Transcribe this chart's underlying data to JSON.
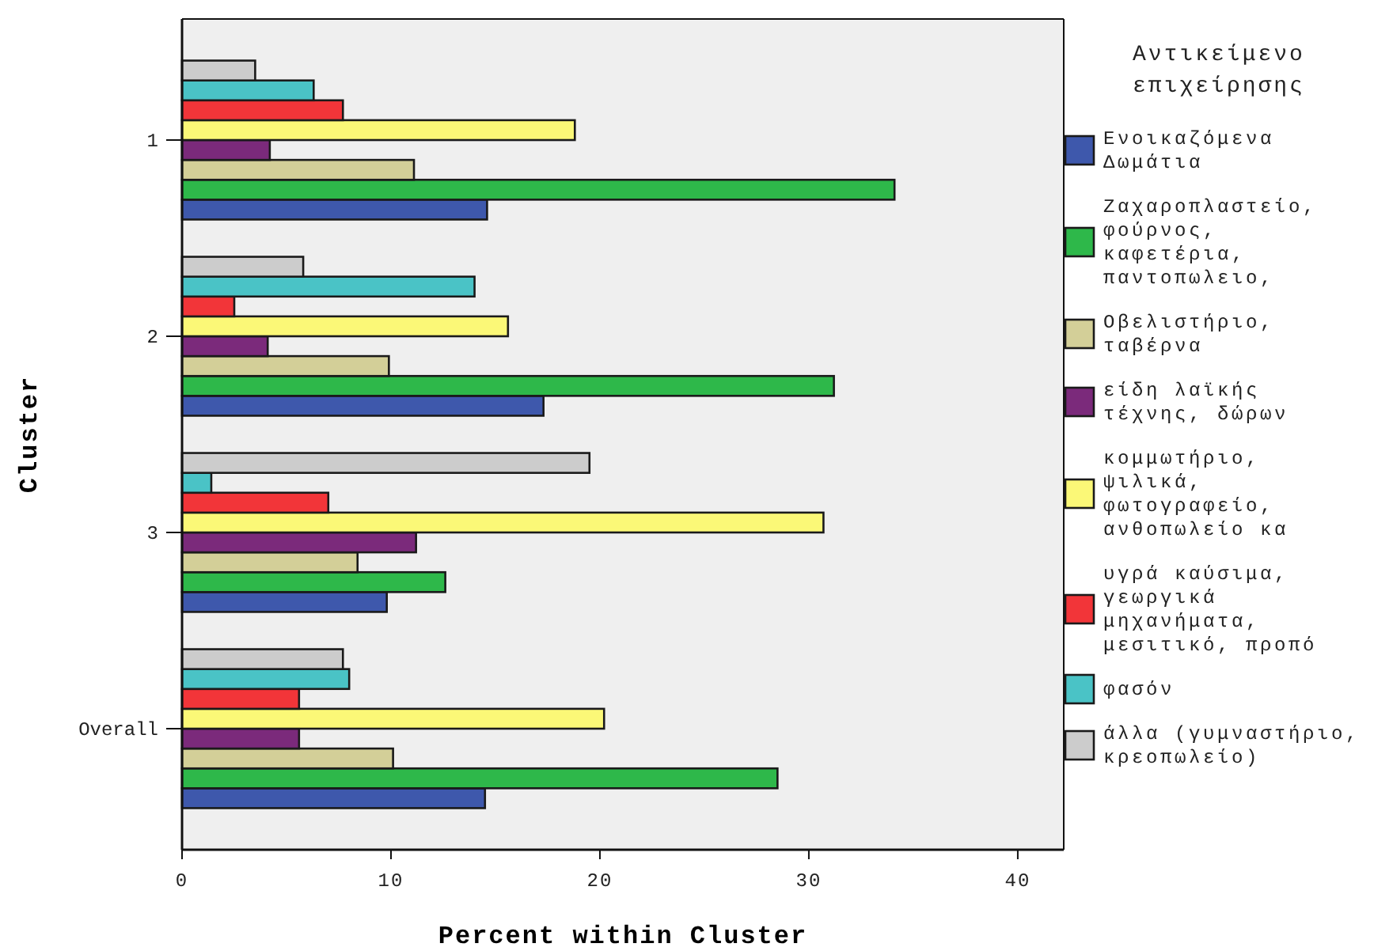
{
  "chart_data": {
    "type": "bar",
    "orientation": "horizontal",
    "xlabel": "Percent within Cluster",
    "ylabel": "Cluster",
    "legend_title": "Αντικείμενο επιχείρησης",
    "legend": "right",
    "categories": [
      "1",
      "2",
      "3",
      "Overall"
    ],
    "xlim": [
      0,
      42.2
    ],
    "xticks": [
      0,
      10,
      20,
      30,
      40
    ],
    "series": [
      {
        "name": "Ενοικαζόμενα Δωμάτια",
        "color": "#3e58ac",
        "values": [
          14.6,
          17.3,
          9.8,
          14.5
        ]
      },
      {
        "name": "Ζαχαροπλαστείο, φούρνος, καφετέρια, παντοπωλειο,",
        "color": "#2eb84a",
        "values": [
          34.1,
          31.2,
          12.6,
          28.5
        ]
      },
      {
        "name": "Οβελιστήριο, ταβέρνα",
        "color": "#d3cf98",
        "values": [
          11.1,
          9.9,
          8.4,
          10.1
        ]
      },
      {
        "name": "είδη λαϊκής τέχνης, δώρων",
        "color": "#7b2a7b",
        "values": [
          4.2,
          4.1,
          11.2,
          5.6
        ]
      },
      {
        "name": "κομμωτήριο, ψιλικά, φωτογραφείο, ανθοπωλείο κα",
        "color": "#fbf877",
        "values": [
          18.8,
          15.6,
          30.7,
          20.2
        ]
      },
      {
        "name": "υγρά καύσιμα, γεωργικά μηχανήματα, μεσιτικό, προπό",
        "color": "#f23539",
        "values": [
          7.7,
          2.5,
          7.0,
          5.6
        ]
      },
      {
        "name": "φασόν",
        "color": "#4ac3c6",
        "values": [
          6.3,
          14.0,
          1.4,
          8.0
        ]
      },
      {
        "name": "άλλα (γυμναστήριο, κρεοπωλείο)",
        "color": "#cccccc",
        "values": [
          3.5,
          5.8,
          19.5,
          7.7
        ]
      }
    ]
  }
}
